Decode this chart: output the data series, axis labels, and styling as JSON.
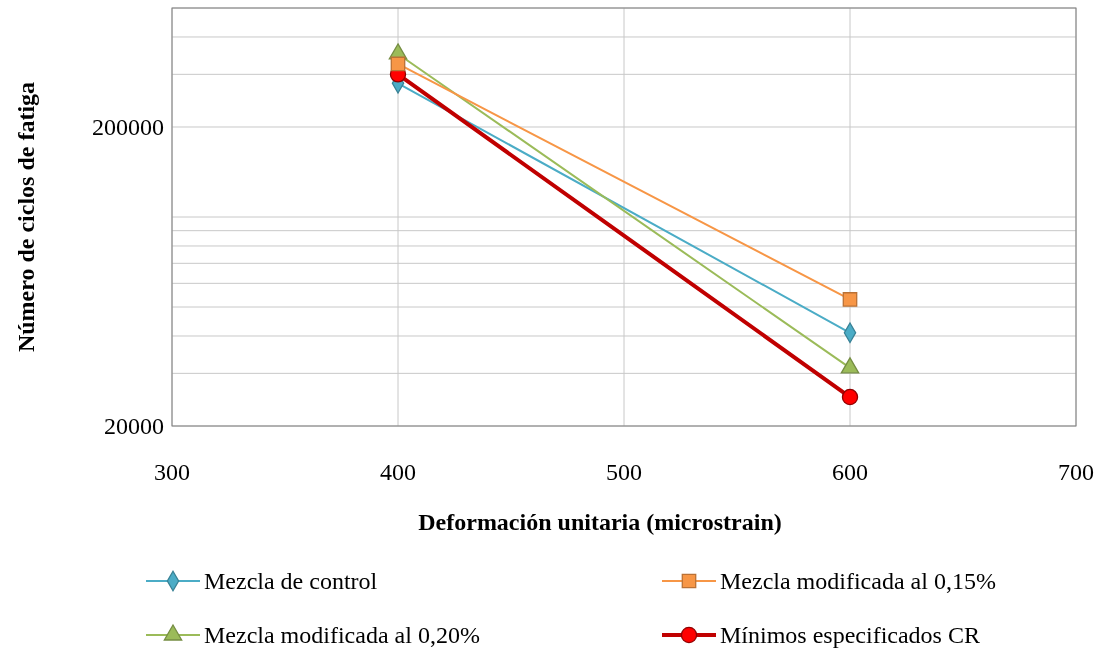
{
  "chart_data": {
    "type": "line",
    "xlabel": "Deformación unitaria (microstrain)",
    "ylabel": "Número de ciclos de fatiga",
    "x": [
      400,
      600
    ],
    "log": "y",
    "grid": true,
    "legend": "bottom",
    "xlim": [
      300,
      700
    ],
    "xticks": [
      300,
      400,
      500,
      600,
      700
    ],
    "ylim": [
      20000,
      500000
    ],
    "yticks": [
      20000,
      {
        "value": 30000,
        "label": null
      },
      {
        "value": 40000,
        "label": null
      },
      {
        "value": 50000,
        "label": null
      },
      {
        "value": 60000,
        "label": null
      },
      {
        "value": 70000,
        "label": null
      },
      {
        "value": 80000,
        "label": null
      },
      {
        "value": 90000,
        "label": null
      },
      {
        "value": 100000,
        "label": null
      },
      200000,
      {
        "value": 300000,
        "label": null
      },
      {
        "value": 400000,
        "label": null
      },
      {
        "value": 500000,
        "label": null
      }
    ],
    "series": [
      {
        "name": "Mezcla de control",
        "color": "#4bacc6",
        "marker": "diamond",
        "values": [
          280000,
          41000
        ]
      },
      {
        "name": "Mezcla modificada al 0,15%",
        "color": "#f79646",
        "marker": "square",
        "values": [
          325000,
          53000
        ]
      },
      {
        "name": "Mezcla modificada al 0,20%",
        "color": "#9bbb59",
        "marker": "triangle",
        "values": [
          351000,
          31300
        ]
      },
      {
        "name": "Mínimos especificados CR",
        "color": "#c00000",
        "marker": "circle",
        "values": [
          300000,
          25000
        ]
      }
    ]
  }
}
